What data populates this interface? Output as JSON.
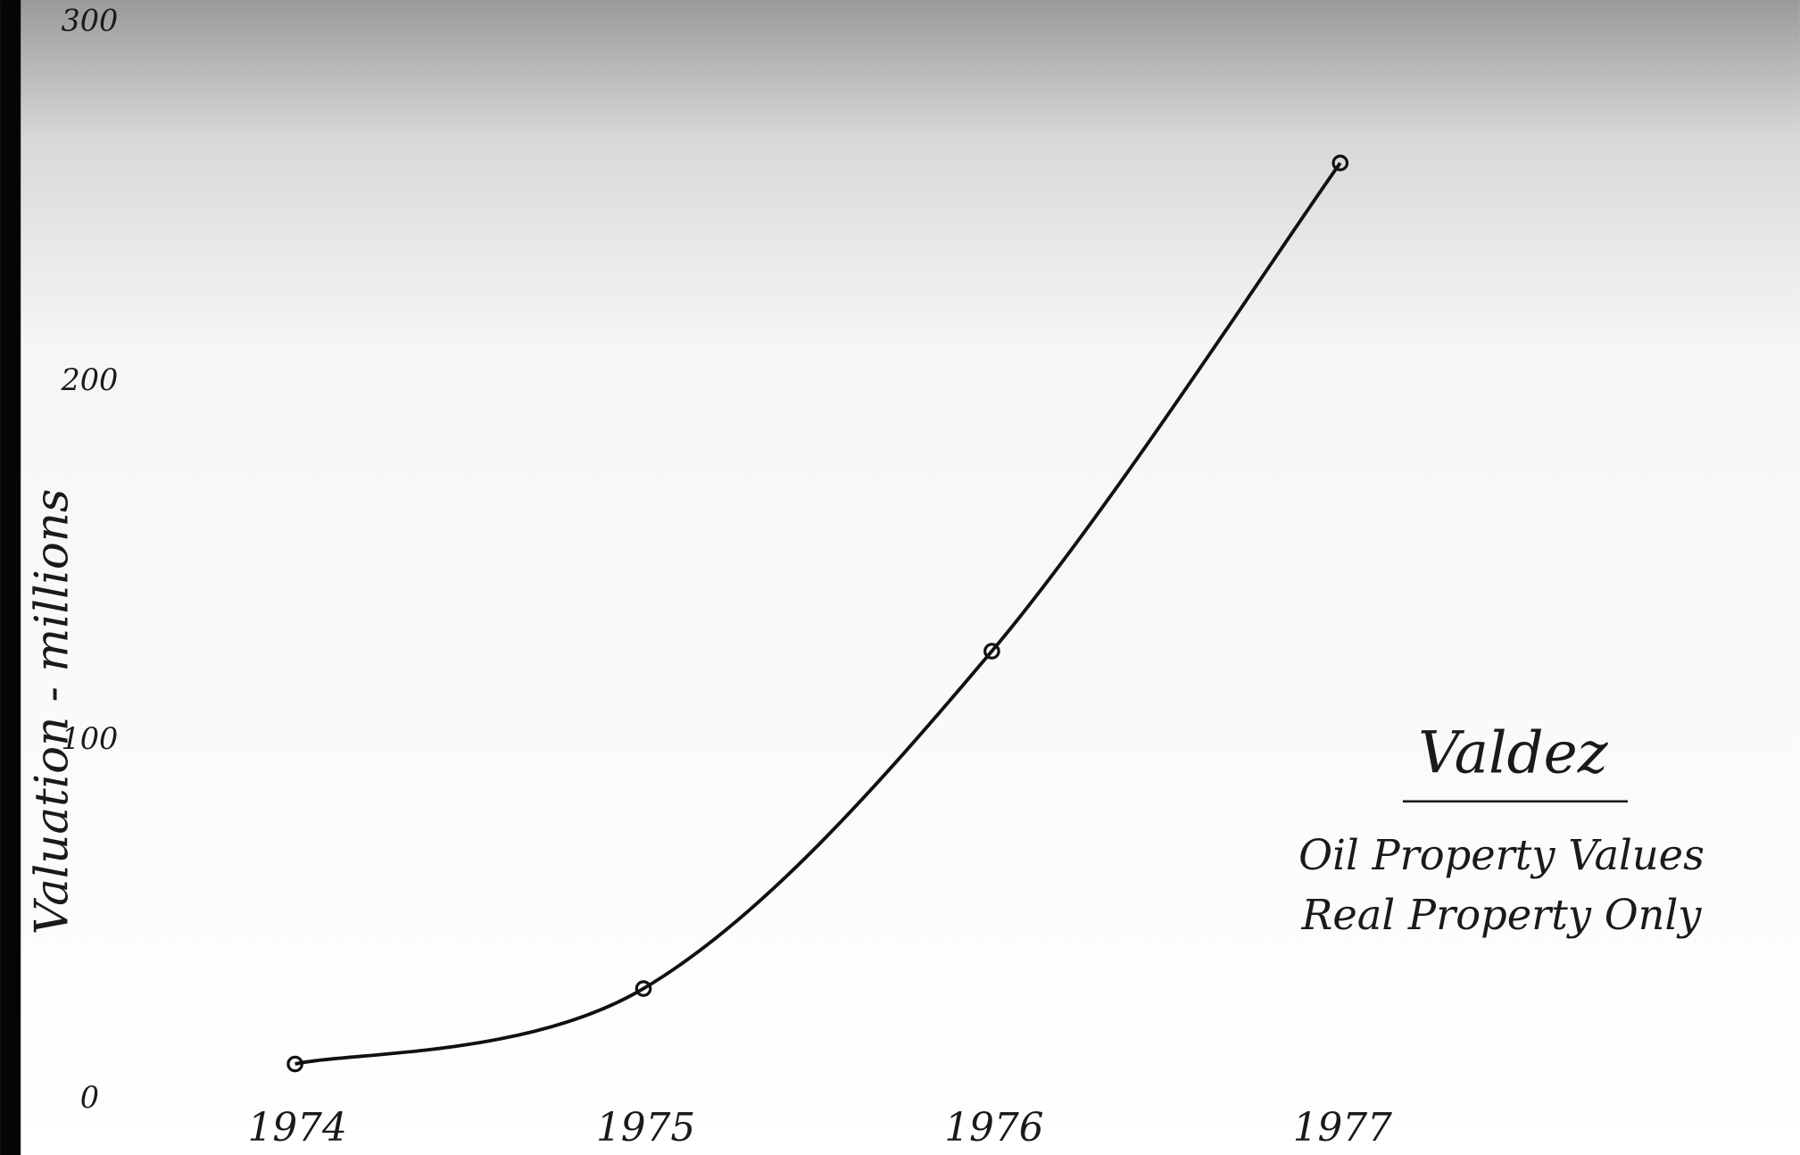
{
  "chart_data": {
    "type": "line",
    "title": "Valdez",
    "annotations": [
      "Oil Property Values",
      "Real Property Only"
    ],
    "y_label": "Valuation - millions",
    "categories": [
      "1974",
      "1975",
      "1976",
      "1977"
    ],
    "values": [
      10,
      31,
      125,
      261
    ],
    "color": "#111111",
    "ylim": [
      0,
      300
    ],
    "yticks": [
      0,
      100,
      200,
      300
    ],
    "grid": false
  }
}
